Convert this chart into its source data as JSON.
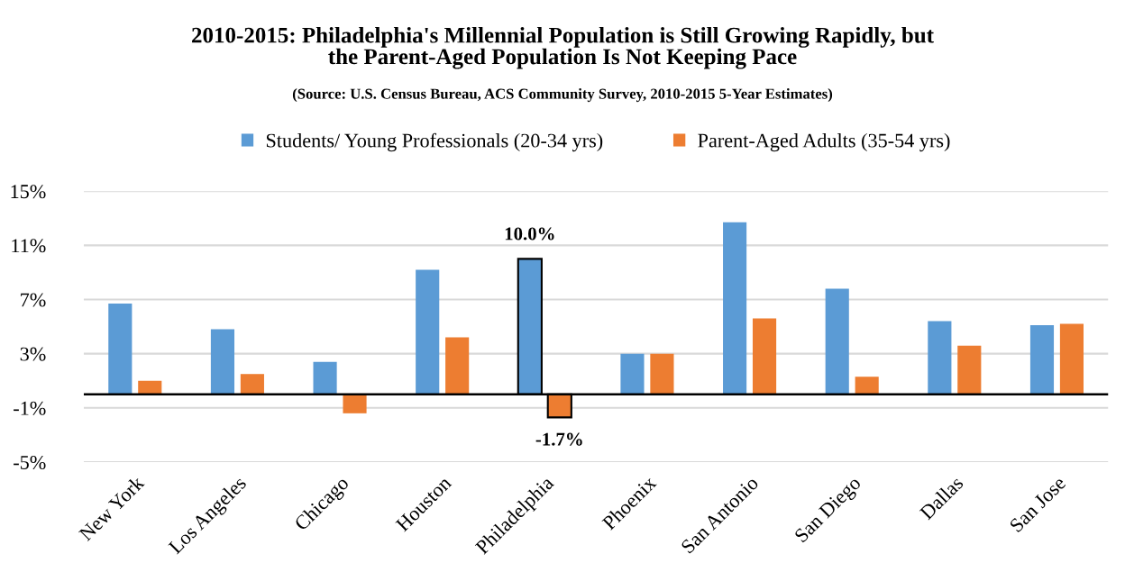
{
  "chart_data": {
    "type": "bar",
    "title": "2010-2015: Philadelphia's Millennial Population is Still Growing Rapidly, but\nthe Parent-Aged Population Is Not Keeping Pace",
    "subtitle": "(Source: U.S. Census Bureau, ACS Community Survey, 2010-2015 5-Year Estimates)",
    "categories": [
      "New York",
      "Los Angeles",
      "Chicago",
      "Houston",
      "Philadelphia",
      "Phoenix",
      "San Antonio",
      "San Diego",
      "Dallas",
      "San Jose"
    ],
    "series": [
      {
        "name": "Students/ Young Professionals (20-34 yrs)",
        "color": "#5b9bd5",
        "values": [
          6.7,
          4.8,
          2.4,
          9.2,
          10.0,
          3.0,
          12.7,
          7.8,
          5.4,
          5.1
        ],
        "value_labels": [
          null,
          null,
          null,
          null,
          "10.0%",
          null,
          null,
          null,
          null,
          null
        ]
      },
      {
        "name": "Parent-Aged Adults (35-54 yrs)",
        "color": "#ed7d31",
        "values": [
          1.0,
          1.5,
          -1.4,
          4.2,
          -1.7,
          3.0,
          5.6,
          1.3,
          3.6,
          5.2
        ],
        "value_labels": [
          null,
          null,
          null,
          null,
          "-1.7%",
          null,
          null,
          null,
          null,
          null
        ]
      }
    ],
    "ylim": [
      -5,
      15
    ],
    "yticks": [
      {
        "value": -5,
        "label": "-5%"
      },
      {
        "value": -1,
        "label": "-1%"
      },
      {
        "value": 3,
        "label": "3%"
      },
      {
        "value": 7,
        "label": "7%"
      },
      {
        "value": 11,
        "label": "11%"
      },
      {
        "value": 15,
        "label": "15%"
      }
    ],
    "ref_lines": [
      {
        "axis": "y",
        "value": 0,
        "color": "#000000"
      }
    ],
    "grid": "y",
    "legend": "top"
  }
}
